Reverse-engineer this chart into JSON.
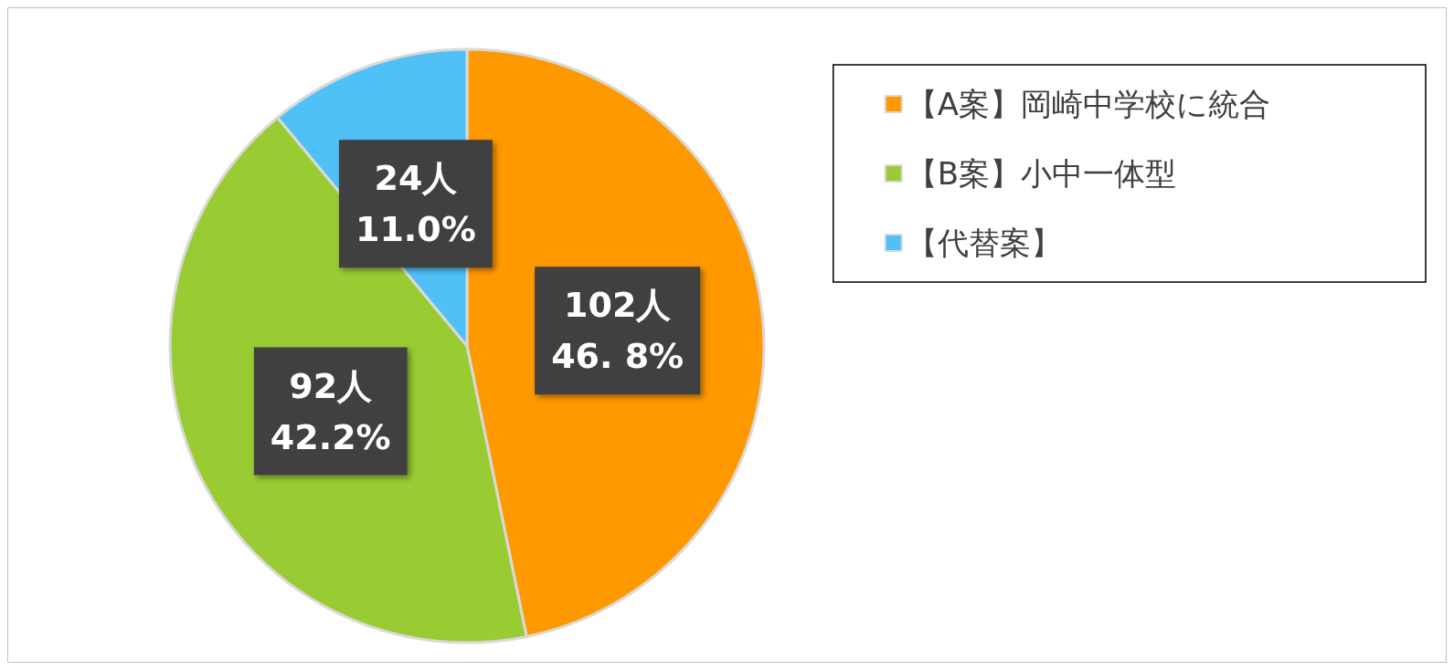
{
  "chart_data": {
    "type": "pie",
    "categories": [
      "【A案】岡崎中学校に統合",
      "【B案】小中一体型",
      "【代替案】"
    ],
    "values": [
      102,
      92,
      24
    ],
    "colors": [
      "#ff9900",
      "#99cc33",
      "#4fc1f7"
    ],
    "value_labels": [
      "102人\n46. 8%",
      "92人\n42.2%",
      "24人\n11.0%"
    ],
    "legend": "top right"
  }
}
